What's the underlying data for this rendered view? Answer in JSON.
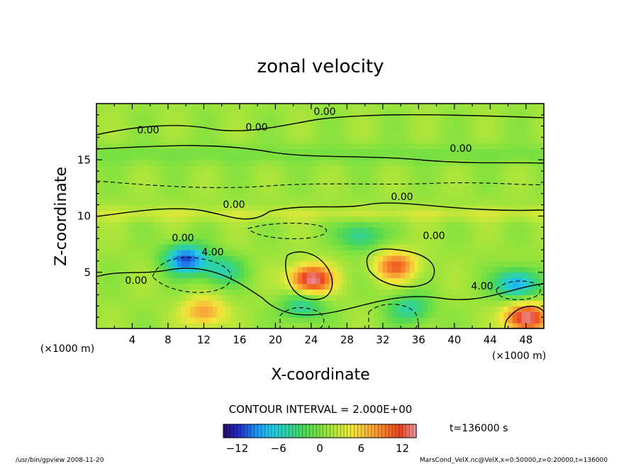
{
  "chart_data": {
    "type": "heatmap",
    "title": "zonal velocity",
    "xlabel": "X-coordinate",
    "ylabel": "Z-coordinate",
    "x_unit": "(×1000 m)",
    "z_unit": "(×1000 m)",
    "xlim": [
      0,
      50
    ],
    "ylim": [
      0,
      20
    ],
    "xticks": [
      "4",
      "8",
      "12",
      "16",
      "20",
      "24",
      "28",
      "32",
      "36",
      "40",
      "44",
      "48"
    ],
    "yticks": [
      "5",
      "10",
      "15"
    ],
    "contour_interval_label": "CONTOUR INTERVAL = 2.000E+00",
    "contour_labels": [
      "0.00",
      "0.00",
      "0.00",
      "0.00",
      "0.00",
      "0.00",
      "0.00",
      "0.00",
      "0.00",
      "4.00",
      "4.00"
    ],
    "time_label": "t=136000 s",
    "colorbar": {
      "range": [
        -14,
        14
      ],
      "ticks": [
        "−12",
        "−6",
        "0",
        "6",
        "12"
      ],
      "colormap": [
        "#2a0a6a",
        "#1e2fc8",
        "#1f8ff0",
        "#20c8e6",
        "#2fd2a0",
        "#49d65a",
        "#7ee13f",
        "#b8e63a",
        "#f2e83a",
        "#f7b53a",
        "#f47d2a",
        "#e8421e",
        "#ef9aa8"
      ]
    },
    "features": [
      {
        "x": 10,
        "z": 6.2,
        "u": -12
      },
      {
        "x": 14,
        "z": 5.2,
        "u": -6
      },
      {
        "x": 24,
        "z": 4.4,
        "u": 13
      },
      {
        "x": 33.5,
        "z": 5.6,
        "u": 9
      },
      {
        "x": 48,
        "z": 1.0,
        "u": 13
      },
      {
        "x": 12,
        "z": 1.5,
        "u": 7
      },
      {
        "x": 29.5,
        "z": 8.3,
        "u": -6
      },
      {
        "x": 47,
        "z": 4.0,
        "u": -10
      },
      {
        "x": 23,
        "z": 2.0,
        "u": -6
      },
      {
        "x": 35,
        "z": 1.8,
        "u": -6
      }
    ]
  },
  "footer_left": "/usr/bin/gpview   2008-11-20",
  "footer_right": "MarsCond_VelX.nc@VelX,x=0:50000,z=0:20000,t=136000"
}
